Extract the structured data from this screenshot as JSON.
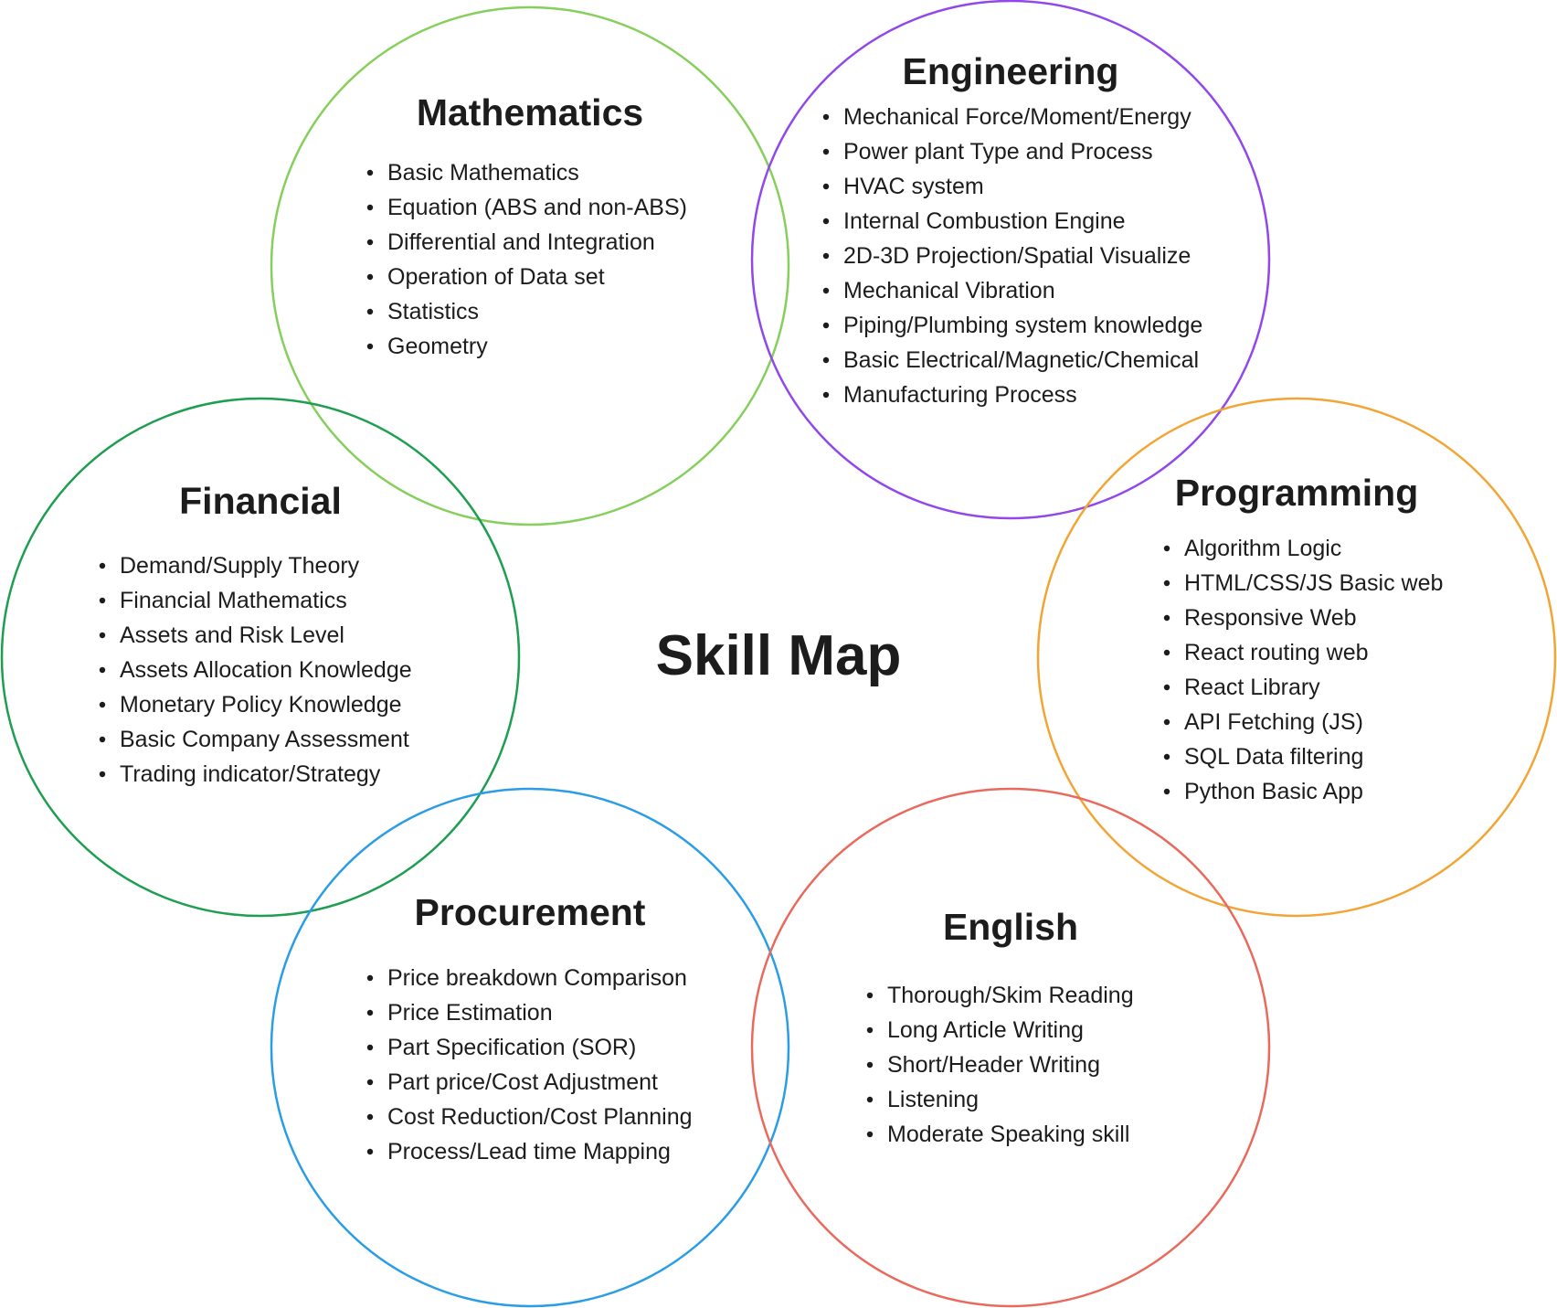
{
  "title": "Skill Map",
  "colors": {
    "mathematics": "#86cf5c",
    "engineering": "#9147ea",
    "financial": "#1e9e50",
    "programming": "#f2a535",
    "procurement": "#2a9de6",
    "english": "#e96a5d",
    "text": "#1c1c1c"
  },
  "groups": [
    {
      "id": "mathematics",
      "title": "Mathematics",
      "items": [
        "Basic Mathematics",
        "Equation (ABS and non-ABS)",
        "Differential and Integration",
        "Operation of Data set",
        "Statistics",
        "Geometry"
      ]
    },
    {
      "id": "engineering",
      "title": "Engineering",
      "items": [
        "Mechanical Force/Moment/Energy",
        "Power plant Type and Process",
        "HVAC system",
        "Internal Combustion Engine",
        "2D-3D Projection/Spatial Visualize",
        "Mechanical Vibration",
        "Piping/Plumbing system knowledge",
        "Basic Electrical/Magnetic/Chemical",
        "Manufacturing Process"
      ]
    },
    {
      "id": "financial",
      "title": "Financial",
      "items": [
        "Demand/Supply Theory",
        "Financial Mathematics",
        "Assets and Risk Level",
        "Assets Allocation Knowledge",
        "Monetary Policy Knowledge",
        "Basic Company Assessment",
        "Trading indicator/Strategy"
      ]
    },
    {
      "id": "programming",
      "title": "Programming",
      "items": [
        "Algorithm Logic",
        "HTML/CSS/JS Basic web",
        "Responsive Web",
        "React routing web",
        "React Library",
        "API Fetching (JS)",
        "SQL Data filtering",
        "Python Basic App"
      ]
    },
    {
      "id": "procurement",
      "title": "Procurement",
      "items": [
        "Price breakdown Comparison",
        "Price Estimation",
        "Part Specification (SOR)",
        "Part price/Cost Adjustment",
        "Cost Reduction/Cost Planning",
        "Process/Lead time Mapping"
      ]
    },
    {
      "id": "english",
      "title": "English",
      "items": [
        "Thorough/Skim Reading",
        "Long Article Writing",
        "Short/Header Writing",
        "Listening",
        "Moderate Speaking skill"
      ]
    }
  ]
}
